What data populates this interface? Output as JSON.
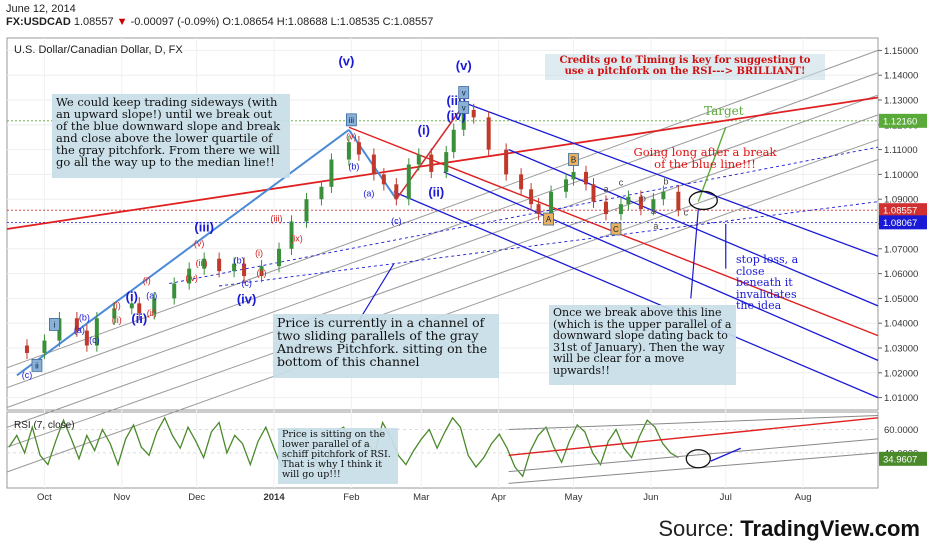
{
  "header": {
    "date": "June 12, 2014",
    "symbol": "FX:USDCAD",
    "last": "1.08557",
    "change": "-0.00097 (-0.09%)",
    "open": "O:1.08654",
    "high": "H:1.08688",
    "low": "L:1.08535",
    "close": "C:1.08557"
  },
  "main_title": "U.S. Dollar/Canadian Dollar, D, FX",
  "rsi_title": "RSI (7, close)",
  "source": {
    "prefix": "Source: ",
    "brand": "TradingView.com"
  },
  "notes": {
    "credits": "Credits go to Timing is key for suggesting to use a pitchfork on the RSI---> BRILLIANT!",
    "sideways": "We could keep trading sideways (with an upward slope!) until we break out of the blue downward slope and break and close above the lower quartile of the gray pitchfork. From there we will go all the way up to the median line!!",
    "channel": "Price is currently in a channel of two sliding parallels of the gray Andrews Pitchfork. sitting on the bottom of this channel",
    "breakout": "Once we break above this line (which is the upper parallel of a downward slope dating back to 31st of January). Then the way will be clear for a move upwards!!",
    "rsi": "Price is sitting on the lower parallel of a schiff pitchfork of RSI. That is why I think it will go up!!!",
    "going_long": "Going long after a break of the blue line!!!",
    "stop_loss": "stop loss, a close beneath it invalidates the idea",
    "target": "Target"
  },
  "colors": {
    "up": "#3a8f3a",
    "down": "#c0392b",
    "pitchfork_gray": "#9a9a9a",
    "channel_blue": "#1a1ad6",
    "red_line": "#e02020",
    "rsi_line": "#4a8a2a",
    "target": "#5aaa3a"
  },
  "price_axis": {
    "ticks": [
      "1.15000",
      "1.14000",
      "1.13000",
      "1.12000",
      "1.11000",
      "1.10000",
      "1.09000",
      "1.08000",
      "1.07000",
      "1.06000",
      "1.05000",
      "1.04000",
      "1.03000",
      "1.02000",
      "1.01000"
    ],
    "badges": [
      {
        "value": "1.12160",
        "color": "#5aaa3a"
      },
      {
        "value": "1.08557",
        "color": "#d03030"
      },
      {
        "value": "1.08067",
        "color": "#1a1ad6"
      }
    ]
  },
  "rsi_axis": {
    "ticks": [
      "60.0000",
      "40.0000"
    ],
    "badge": "34.9607"
  },
  "time_axis": [
    "Oct",
    "Nov",
    "Dec",
    "2014",
    "Feb",
    "Mar",
    "Apr",
    "May",
    "Jun",
    "Jul",
    "Aug"
  ],
  "wave_labels": [
    {
      "text": "(v)",
      "color": "#1a1ad6",
      "bold": true
    },
    {
      "text": "(v)",
      "color": "#1a1ad6",
      "bold": true
    },
    {
      "text": "(iii)",
      "color": "#1a1ad6",
      "bold": true
    },
    {
      "text": "(iv)",
      "color": "#1a1ad6",
      "bold": true
    },
    {
      "text": "(i)",
      "color": "#1a1ad6",
      "bold": true
    },
    {
      "text": "(ii)",
      "color": "#1a1ad6",
      "bold": true
    },
    {
      "text": "(iii)",
      "color": "#1a1ad6",
      "bold": true
    },
    {
      "text": "(iv)",
      "color": "#1a1ad6",
      "bold": true
    },
    {
      "text": "(i)",
      "color": "#1a1ad6",
      "bold": true
    },
    {
      "text": "(ii)",
      "color": "#1a1ad6",
      "bold": true
    },
    {
      "text": "(b)",
      "color": "#1a1ad6",
      "bold": false
    },
    {
      "text": "(a)",
      "color": "#1a1ad6",
      "bold": false
    },
    {
      "text": "(c)",
      "color": "#1a1ad6",
      "bold": false
    },
    {
      "text": "(b)",
      "color": "#1a1ad6",
      "bold": false
    },
    {
      "text": "(a)",
      "color": "#1a1ad6",
      "bold": false
    },
    {
      "text": "(c)",
      "color": "#1a1ad6",
      "bold": false
    },
    {
      "text": "(b)",
      "color": "#1a1ad6",
      "bold": false
    },
    {
      "text": "(a)",
      "color": "#1a1ad6",
      "bold": false
    },
    {
      "text": "(c)",
      "color": "#1a1ad6",
      "bold": false
    },
    {
      "text": "(c)",
      "color": "#1a1ad6",
      "bold": false
    },
    {
      "text": "(v)",
      "color": "#d02020",
      "bold": false
    },
    {
      "text": "(iii)",
      "color": "#d02020",
      "bold": false
    },
    {
      "text": "(ix)",
      "color": "#d02020",
      "bold": false
    },
    {
      "text": "(v)",
      "color": "#d02020",
      "bold": false
    },
    {
      "text": "(iii)",
      "color": "#d02020",
      "bold": false
    },
    {
      "text": "(i)",
      "color": "#d02020",
      "bold": false
    },
    {
      "text": "(ii)",
      "color": "#d02020",
      "bold": false
    },
    {
      "text": "(iv)",
      "color": "#d02020",
      "bold": false
    },
    {
      "text": "(i)",
      "color": "#d02020",
      "bold": false
    },
    {
      "text": "(ii)",
      "color": "#d02020",
      "bold": false
    },
    {
      "text": "(i)",
      "color": "#d02020",
      "bold": false
    },
    {
      "text": "(ii)",
      "color": "#d02020",
      "bold": false
    },
    {
      "text": "a",
      "color": "#444",
      "bold": false
    },
    {
      "text": "c",
      "color": "#444",
      "bold": false
    },
    {
      "text": "b",
      "color": "#444",
      "bold": false
    },
    {
      "text": "a",
      "color": "#444",
      "bold": false
    },
    {
      "text": "b",
      "color": "#444",
      "bold": false
    },
    {
      "text": "a",
      "color": "#444",
      "bold": false
    },
    {
      "text": "c",
      "color": "#444",
      "bold": false
    }
  ],
  "point_markers": [
    "i",
    "ii",
    "iii",
    "v",
    "A",
    "B",
    "C",
    "v"
  ],
  "chart_data": {
    "type": "candlestick",
    "title": "U.S. Dollar/Canadian Dollar, D, FX",
    "symbol": "FX:USDCAD",
    "ylim": [
      1.005,
      1.155
    ],
    "y_tick_step": 0.01,
    "x_months": [
      "Oct",
      "Nov",
      "Dec",
      "2014",
      "Feb",
      "Mar",
      "Apr",
      "May",
      "Jun",
      "Jul",
      "Aug"
    ],
    "close_path": [
      [
        "2013-09-16",
        1.031
      ],
      [
        "2013-09-24",
        1.028
      ],
      [
        "2013-10-01",
        1.033
      ],
      [
        "2013-10-07",
        1.042
      ],
      [
        "2013-10-14",
        1.037
      ],
      [
        "2013-10-18",
        1.031
      ],
      [
        "2013-10-22",
        1.042
      ],
      [
        "2013-10-29",
        1.046
      ],
      [
        "2013-11-05",
        1.048
      ],
      [
        "2013-11-08",
        1.044
      ],
      [
        "2013-11-14",
        1.05
      ],
      [
        "2013-11-22",
        1.056
      ],
      [
        "2013-11-28",
        1.062
      ],
      [
        "2013-12-04",
        1.066
      ],
      [
        "2013-12-10",
        1.061
      ],
      [
        "2013-12-16",
        1.064
      ],
      [
        "2013-12-20",
        1.059
      ],
      [
        "2013-12-27",
        1.063
      ],
      [
        "2014-01-03",
        1.07
      ],
      [
        "2014-01-08",
        1.081
      ],
      [
        "2014-01-14",
        1.09
      ],
      [
        "2014-01-20",
        1.095
      ],
      [
        "2014-01-24",
        1.106
      ],
      [
        "2014-01-31",
        1.113
      ],
      [
        "2014-02-04",
        1.108
      ],
      [
        "2014-02-10",
        1.1
      ],
      [
        "2014-02-14",
        1.096
      ],
      [
        "2014-02-19",
        1.09
      ],
      [
        "2014-02-24",
        1.104
      ],
      [
        "2014-02-28",
        1.108
      ],
      [
        "2014-03-05",
        1.101
      ],
      [
        "2014-03-11",
        1.109
      ],
      [
        "2014-03-14",
        1.118
      ],
      [
        "2014-03-18",
        1.126
      ],
      [
        "2014-03-22",
        1.123
      ],
      [
        "2014-03-28",
        1.11
      ],
      [
        "2014-04-04",
        1.1
      ],
      [
        "2014-04-10",
        1.094
      ],
      [
        "2014-04-14",
        1.088
      ],
      [
        "2014-04-17",
        1.084
      ],
      [
        "2014-04-22",
        1.093
      ],
      [
        "2014-04-28",
        1.098
      ],
      [
        "2014-05-01",
        1.101
      ],
      [
        "2014-05-06",
        1.096
      ],
      [
        "2014-05-09",
        1.089
      ],
      [
        "2014-05-14",
        1.084
      ],
      [
        "2014-05-20",
        1.088
      ],
      [
        "2014-05-23",
        1.091
      ],
      [
        "2014-05-28",
        1.086
      ],
      [
        "2014-06-02",
        1.09
      ],
      [
        "2014-06-06",
        1.093
      ],
      [
        "2014-06-12",
        1.0856
      ]
    ],
    "annotations": {
      "target": 1.1216,
      "last": 1.08557,
      "blue_level": 1.08067
    },
    "rsi": {
      "title": "RSI (7, close)",
      "ylim": [
        10,
        75
      ],
      "last": 34.9607,
      "values": [
        45,
        55,
        40,
        62,
        38,
        30,
        50,
        68,
        52,
        35,
        55,
        42,
        60,
        48,
        30,
        52,
        64,
        45,
        38,
        58,
        70,
        55,
        44,
        62,
        50,
        36,
        58,
        66,
        40,
        55,
        48,
        30,
        50,
        62,
        45,
        28,
        42,
        60,
        55,
        40,
        24,
        35,
        58,
        62,
        48,
        32,
        50,
        40,
        66,
        54,
        38,
        30,
        42,
        52,
        60,
        44,
        58,
        70,
        62,
        38,
        28,
        36,
        48,
        56,
        44,
        28,
        20,
        42,
        55,
        62,
        45,
        32,
        50,
        64,
        58,
        40,
        30,
        50,
        60,
        44,
        36,
        54,
        68,
        62,
        48,
        40,
        36
      ]
    }
  }
}
